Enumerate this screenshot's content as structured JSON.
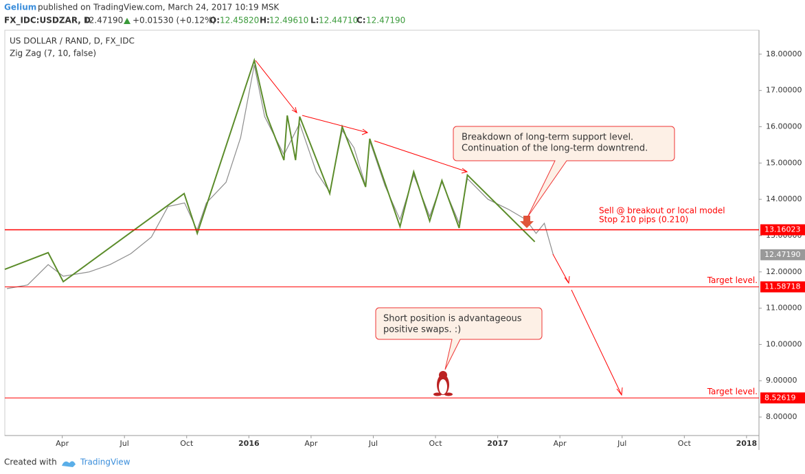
{
  "header": {
    "author": "Gelium",
    "published": "published on TradingView.com, March 24, 2017 10:19 MSK",
    "symbol": "FX_IDC:USDZAR, D",
    "last": "12.47190",
    "change": "+0.01530 (+0.12%)",
    "open_label": "O:",
    "open": "12.45820",
    "high_label": "H:",
    "high": "12.49610",
    "low_label": "L:",
    "low": "12.44710",
    "close_label": "C:",
    "close": "12.47190"
  },
  "chart_data": {
    "type": "line",
    "title": "US DOLLAR / RAND, D, FX_IDC",
    "subtitle": "Zig Zag (7, 10, false)",
    "xlim": [
      0.23,
      36.6
    ],
    "xticks": [
      {
        "value": 3,
        "label": "Apr"
      },
      {
        "value": 6,
        "label": "Jul"
      },
      {
        "value": 9,
        "label": "Oct"
      },
      {
        "value": 12,
        "label": "2016"
      },
      {
        "value": 15,
        "label": "Apr"
      },
      {
        "value": 18,
        "label": "Jul"
      },
      {
        "value": 21,
        "label": "Oct"
      },
      {
        "value": 24,
        "label": "2017"
      },
      {
        "value": 27,
        "label": "Apr"
      },
      {
        "value": 30,
        "label": "Jul"
      },
      {
        "value": 33,
        "label": "Oct"
      },
      {
        "value": 36,
        "label": "2018"
      }
    ],
    "ylim": [
      7.49,
      18.66
    ],
    "yticks": [
      {
        "value": 8,
        "label": "8.00000"
      },
      {
        "value": 9,
        "label": "9.00000"
      },
      {
        "value": 10,
        "label": "10.00000"
      },
      {
        "value": 11,
        "label": "11.00000"
      },
      {
        "value": 12,
        "label": "12.00000"
      },
      {
        "value": 13,
        "label": "13.00000"
      },
      {
        "value": 14,
        "label": "14.00000"
      },
      {
        "value": 15,
        "label": "15.00000"
      },
      {
        "value": 16,
        "label": "16.00000"
      },
      {
        "value": 17,
        "label": "17.00000"
      },
      {
        "value": 18,
        "label": "18.00000"
      }
    ],
    "series": [
      {
        "color": "#8c8c8c",
        "x": [
          0.33,
          1.33,
          2.32,
          3.05,
          4.3,
          5.3,
          6.3,
          7.3,
          8.1,
          8.9,
          9.5,
          9.95,
          10.9,
          11.6,
          12.26,
          12.76,
          13.69,
          14.45,
          15.25,
          15.9,
          16.5,
          17.07,
          17.63,
          17.83,
          18.56,
          19.29,
          19.95,
          20.72,
          21.31,
          22.14,
          22.54,
          23.53,
          24.53,
          25.36,
          25.85,
          26.25,
          26.68
        ],
        "values": [
          11.54,
          11.64,
          12.2,
          11.88,
          12.0,
          12.2,
          12.5,
          12.96,
          13.8,
          13.9,
          13.15,
          13.9,
          14.47,
          15.7,
          17.7,
          16.28,
          15.23,
          16.09,
          14.76,
          14.2,
          15.9,
          15.42,
          14.38,
          15.61,
          14.38,
          13.44,
          14.67,
          13.53,
          14.47,
          13.34,
          14.57,
          14.0,
          13.72,
          13.44,
          13.06,
          13.34,
          12.4719
        ]
      },
      {
        "color": "#5b8c2a",
        "x": [
          0.23,
          2.32,
          3.05,
          8.88,
          9.51,
          12.26,
          12.86,
          13.69,
          13.85,
          14.25,
          14.45,
          15.9,
          16.5,
          17.63,
          17.83,
          19.29,
          19.95,
          20.72,
          21.31,
          22.14,
          22.54,
          25.79
        ],
        "values": [
          12.07,
          12.53,
          11.73,
          14.16,
          13.06,
          17.83,
          16.31,
          15.08,
          16.31,
          15.08,
          16.28,
          14.16,
          16.0,
          14.34,
          15.67,
          13.25,
          14.76,
          13.4,
          14.52,
          13.21,
          14.67,
          12.83
        ]
      }
    ],
    "levels": [
      {
        "value": 13.16023,
        "label": "13.16023"
      },
      {
        "value": 11.58718,
        "label": "11.58718",
        "note": "Target level."
      },
      {
        "value": 8.52619,
        "label": "8.52619",
        "note": "Target level."
      }
    ],
    "last_price": {
      "value": 12.4719,
      "label": "12.47190"
    },
    "annotations": {
      "sell": "Sell @ breakout or local model",
      "stop": "Stop 210 pips (0.210)",
      "callout1": [
        "Breakdown of long-term support level.",
        "Continuation of the long-term downtrend."
      ],
      "callout2": [
        "Short position is advantageous",
        "positive swaps. :)"
      ]
    }
  },
  "footer": {
    "created": "Created with",
    "brand": "TradingView"
  }
}
